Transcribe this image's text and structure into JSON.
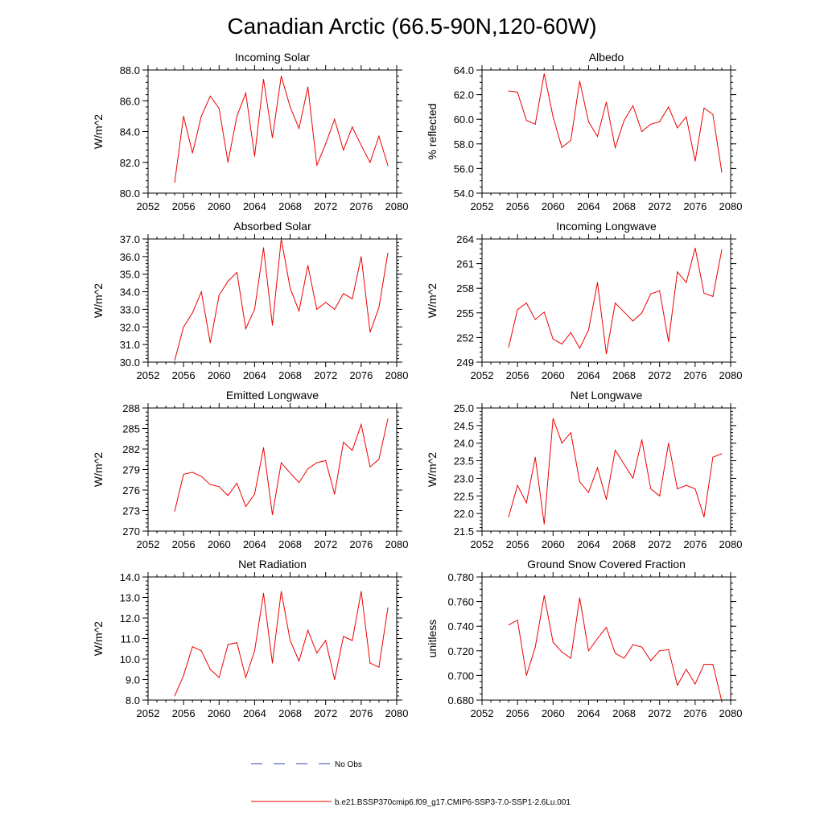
{
  "title": "Canadian Arctic (66.5-90N,120-60W)",
  "legend": {
    "placement": "bottom-center",
    "entries": [
      {
        "label": "No Obs",
        "color": "#3344aa",
        "style": "dashed"
      },
      {
        "label": "b.e21.BSSP370cmip6.f09_g17.CMIP6-SSP3-7.0-SSP1-2.6Lu.001",
        "color": "#ee0000",
        "style": "solid"
      }
    ]
  },
  "chart_data": [
    {
      "type": "line",
      "title": "Incoming Solar",
      "xlabel": "",
      "ylabel": "W/m^2",
      "xlim": [
        2052,
        2080
      ],
      "ylim": [
        80,
        88
      ],
      "xticks": [
        2052,
        2056,
        2060,
        2064,
        2068,
        2072,
        2076,
        2080
      ],
      "yticks": [
        80,
        82,
        84,
        86,
        88
      ],
      "ytick_decimals": 1,
      "minor_y": 0.4,
      "color": "#ee0000",
      "x": [
        2055,
        2056,
        2057,
        2058,
        2059,
        2060,
        2061,
        2062,
        2063,
        2064,
        2065,
        2066,
        2067,
        2068,
        2069,
        2070,
        2071,
        2072,
        2073,
        2074,
        2075,
        2076,
        2077,
        2078,
        2079
      ],
      "y": [
        80.7,
        85.0,
        82.6,
        85.0,
        86.3,
        85.5,
        82.0,
        85.0,
        86.5,
        82.4,
        87.4,
        83.6,
        87.6,
        85.6,
        84.2,
        86.9,
        81.8,
        83.2,
        84.8,
        82.8,
        84.3,
        83.1,
        82.0,
        83.7,
        81.8
      ]
    },
    {
      "type": "line",
      "title": "Albedo",
      "xlabel": "",
      "ylabel": "% reflected",
      "xlim": [
        2052,
        2080
      ],
      "ylim": [
        54,
        64
      ],
      "xticks": [
        2052,
        2056,
        2060,
        2064,
        2068,
        2072,
        2076,
        2080
      ],
      "yticks": [
        54,
        56,
        58,
        60,
        62,
        64
      ],
      "ytick_decimals": 1,
      "minor_y": 0.5,
      "color": "#ee0000",
      "x": [
        2055,
        2056,
        2057,
        2058,
        2059,
        2060,
        2061,
        2062,
        2063,
        2064,
        2065,
        2066,
        2067,
        2068,
        2069,
        2070,
        2071,
        2072,
        2073,
        2074,
        2075,
        2076,
        2077,
        2078,
        2079
      ],
      "y": [
        62.3,
        62.2,
        59.9,
        59.6,
        63.7,
        60.2,
        57.7,
        58.3,
        63.1,
        59.8,
        58.6,
        61.4,
        57.7,
        59.9,
        61.1,
        59.0,
        59.6,
        59.8,
        61.0,
        59.3,
        60.2,
        56.6,
        60.9,
        60.4,
        55.7
      ]
    },
    {
      "type": "line",
      "title": "Absorbed Solar",
      "xlabel": "",
      "ylabel": "W/m^2",
      "xlim": [
        2052,
        2080
      ],
      "ylim": [
        30,
        37
      ],
      "xticks": [
        2052,
        2056,
        2060,
        2064,
        2068,
        2072,
        2076,
        2080
      ],
      "yticks": [
        30,
        31,
        32,
        33,
        34,
        35,
        36,
        37
      ],
      "ytick_decimals": 1,
      "minor_y": 0.2,
      "color": "#ee0000",
      "x": [
        2055,
        2056,
        2057,
        2058,
        2059,
        2060,
        2061,
        2062,
        2063,
        2064,
        2065,
        2066,
        2067,
        2068,
        2069,
        2070,
        2071,
        2072,
        2073,
        2074,
        2075,
        2076,
        2077,
        2078,
        2079
      ],
      "y": [
        30.1,
        32.0,
        32.8,
        34.0,
        31.1,
        33.8,
        34.6,
        35.1,
        31.9,
        33.0,
        36.5,
        32.1,
        37.0,
        34.2,
        32.9,
        35.5,
        33.0,
        33.4,
        33.0,
        33.9,
        33.6,
        36.0,
        31.7,
        33.1,
        36.2
      ]
    },
    {
      "type": "line",
      "title": "Incoming Longwave",
      "xlabel": "",
      "ylabel": "W/m^2",
      "xlim": [
        2052,
        2080
      ],
      "ylim": [
        249,
        264
      ],
      "xticks": [
        2052,
        2056,
        2060,
        2064,
        2068,
        2072,
        2076,
        2080
      ],
      "yticks": [
        249,
        252,
        255,
        258,
        261,
        264
      ],
      "ytick_decimals": 0,
      "minor_y": 0.6,
      "color": "#ee0000",
      "x": [
        2055,
        2056,
        2057,
        2058,
        2059,
        2060,
        2061,
        2062,
        2063,
        2064,
        2065,
        2066,
        2067,
        2068,
        2069,
        2070,
        2071,
        2072,
        2073,
        2074,
        2075,
        2076,
        2077,
        2078,
        2079
      ],
      "y": [
        250.8,
        255.4,
        256.2,
        254.2,
        255.1,
        251.8,
        251.2,
        252.6,
        250.7,
        252.9,
        258.7,
        250.0,
        256.2,
        255.1,
        254.0,
        255.0,
        257.3,
        257.7,
        251.5,
        260.0,
        258.7,
        262.9,
        257.4,
        257.0,
        262.7
      ]
    },
    {
      "type": "line",
      "title": "Emitted Longwave",
      "xlabel": "",
      "ylabel": "W/m^2",
      "xlim": [
        2052,
        2080
      ],
      "ylim": [
        270,
        288
      ],
      "xticks": [
        2052,
        2056,
        2060,
        2064,
        2068,
        2072,
        2076,
        2080
      ],
      "yticks": [
        270,
        273,
        276,
        279,
        282,
        285,
        288
      ],
      "ytick_decimals": 0,
      "minor_y": 0.6,
      "color": "#ee0000",
      "x": [
        2055,
        2056,
        2057,
        2058,
        2059,
        2060,
        2061,
        2062,
        2063,
        2064,
        2065,
        2066,
        2067,
        2068,
        2069,
        2070,
        2071,
        2072,
        2073,
        2074,
        2075,
        2076,
        2077,
        2078,
        2079
      ],
      "y": [
        272.9,
        278.3,
        278.6,
        278.0,
        276.8,
        276.5,
        275.2,
        277.0,
        273.6,
        275.4,
        282.2,
        272.4,
        280.0,
        278.5,
        277.1,
        279.1,
        280.0,
        280.3,
        275.4,
        283.0,
        281.8,
        285.6,
        279.4,
        280.5,
        286.4
      ]
    },
    {
      "type": "line",
      "title": "Net Longwave",
      "xlabel": "",
      "ylabel": "W/m^2",
      "xlim": [
        2052,
        2080
      ],
      "ylim": [
        21.5,
        25.0
      ],
      "xticks": [
        2052,
        2056,
        2060,
        2064,
        2068,
        2072,
        2076,
        2080
      ],
      "yticks": [
        21.5,
        22.0,
        22.5,
        23.0,
        23.5,
        24.0,
        24.5,
        25.0
      ],
      "ytick_decimals": 1,
      "minor_y": 0.1,
      "color": "#ee0000",
      "x": [
        2055,
        2056,
        2057,
        2058,
        2059,
        2060,
        2061,
        2062,
        2063,
        2064,
        2065,
        2066,
        2067,
        2068,
        2069,
        2070,
        2071,
        2072,
        2073,
        2074,
        2075,
        2076,
        2077,
        2078,
        2079
      ],
      "y": [
        21.9,
        22.8,
        22.3,
        23.6,
        21.7,
        24.7,
        24.0,
        24.3,
        22.9,
        22.6,
        23.3,
        22.4,
        23.8,
        23.4,
        23.0,
        24.1,
        22.7,
        22.5,
        24.0,
        22.7,
        22.8,
        22.7,
        21.9,
        23.6,
        23.7
      ]
    },
    {
      "type": "line",
      "title": "Net Radiation",
      "xlabel": "",
      "ylabel": "W/m^2",
      "xlim": [
        2052,
        2080
      ],
      "ylim": [
        8,
        14
      ],
      "xticks": [
        2052,
        2056,
        2060,
        2064,
        2068,
        2072,
        2076,
        2080
      ],
      "yticks": [
        8,
        9,
        10,
        11,
        12,
        13,
        14
      ],
      "ytick_decimals": 1,
      "minor_y": 0.2,
      "color": "#ee0000",
      "x": [
        2055,
        2056,
        2057,
        2058,
        2059,
        2060,
        2061,
        2062,
        2063,
        2064,
        2065,
        2066,
        2067,
        2068,
        2069,
        2070,
        2071,
        2072,
        2073,
        2074,
        2075,
        2076,
        2077,
        2078,
        2079
      ],
      "y": [
        8.2,
        9.2,
        10.6,
        10.4,
        9.5,
        9.1,
        10.7,
        10.8,
        9.1,
        10.4,
        13.2,
        9.8,
        13.3,
        10.9,
        9.9,
        11.4,
        10.3,
        10.9,
        9.0,
        11.1,
        10.9,
        13.3,
        9.8,
        9.6,
        12.5
      ]
    },
    {
      "type": "line",
      "title": "Ground Snow Covered Fraction",
      "xlabel": "",
      "ylabel": "unitless",
      "xlim": [
        2052,
        2080
      ],
      "ylim": [
        0.68,
        0.78
      ],
      "xticks": [
        2052,
        2056,
        2060,
        2064,
        2068,
        2072,
        2076,
        2080
      ],
      "yticks": [
        0.68,
        0.7,
        0.72,
        0.74,
        0.76,
        0.78
      ],
      "ytick_decimals": 3,
      "minor_y": 0.005,
      "color": "#ee0000",
      "x": [
        2055,
        2056,
        2057,
        2058,
        2059,
        2060,
        2061,
        2062,
        2063,
        2064,
        2065,
        2066,
        2067,
        2068,
        2069,
        2070,
        2071,
        2072,
        2073,
        2074,
        2075,
        2076,
        2077,
        2078,
        2079
      ],
      "y": [
        0.741,
        0.745,
        0.7,
        0.723,
        0.765,
        0.727,
        0.719,
        0.714,
        0.763,
        0.72,
        0.73,
        0.739,
        0.718,
        0.714,
        0.725,
        0.723,
        0.712,
        0.72,
        0.721,
        0.692,
        0.705,
        0.693,
        0.709,
        0.709,
        0.679
      ]
    }
  ]
}
